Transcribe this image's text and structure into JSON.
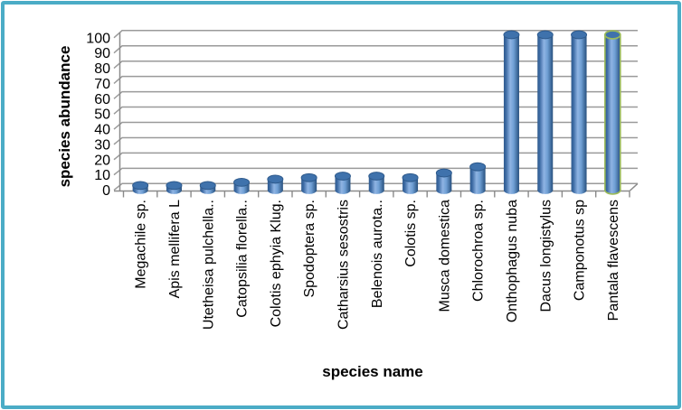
{
  "frame": {
    "border_color": "#4BACC6",
    "background_color": "#FFFFFF"
  },
  "chart_data": {
    "type": "bar",
    "subtype": "3d-cylinder",
    "title": "",
    "xlabel": "species name",
    "ylabel": "species abundance",
    "categories": [
      "Megachile sp.",
      "Apis mellifera L",
      "Utetheisa pulchella..",
      "Catopsilia florella..",
      "Colotis ephyia Klug.",
      "Spodoptera sp.",
      "Catharsius sesostris",
      "Belenois aurota..",
      "Colotis sp.",
      "Musca domestica",
      "Chlorochroa sp.",
      "Onthophagus nuba",
      "Dacus longistylus",
      "Camponotus sp",
      "Pantala flavescens"
    ],
    "values": [
      3,
      3,
      3,
      5,
      7,
      8,
      9,
      9,
      8,
      11,
      15,
      100,
      100,
      100,
      100
    ],
    "yticks": [
      0,
      10,
      20,
      30,
      40,
      50,
      60,
      70,
      80,
      90,
      100
    ],
    "ylim": [
      0,
      100
    ],
    "grid": true,
    "legend": "none",
    "bar_fill_color": "#4F81BD",
    "bar_top_color": "#3F72AC",
    "gridline_color": "#9A9A9A",
    "axis_color": "#8A8A8A",
    "highlighted_category": "Pantala flavescens",
    "highlight_outline_color": "#9BBB59"
  }
}
